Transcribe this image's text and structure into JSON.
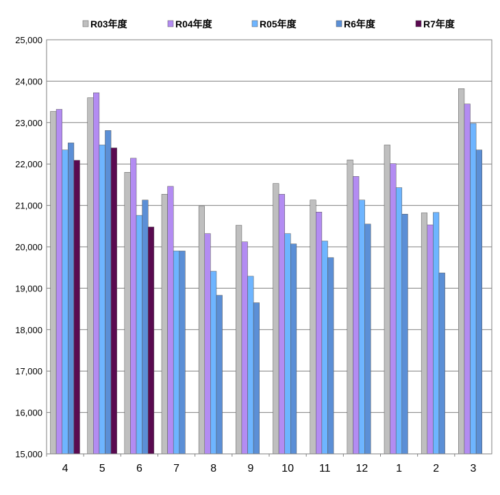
{
  "chart_data": {
    "type": "bar",
    "categories": [
      "4",
      "5",
      "6",
      "7",
      "8",
      "9",
      "10",
      "11",
      "12",
      "1",
      "2",
      "3"
    ],
    "series": [
      {
        "name": "R03年度",
        "color": "#bfbfbf",
        "values": [
          23270,
          23600,
          21800,
          21270,
          20980,
          20520,
          21530,
          21130,
          22100,
          22460,
          20820,
          23820
        ]
      },
      {
        "name": "R04年度",
        "color": "#b38cf2",
        "values": [
          23320,
          23720,
          22140,
          21460,
          20320,
          20120,
          21270,
          20840,
          21700,
          22010,
          20530,
          23450
        ]
      },
      {
        "name": "R05年度",
        "color": "#6eb5ff",
        "values": [
          22340,
          22460,
          20760,
          19900,
          19410,
          19290,
          20320,
          20140,
          21130,
          21430,
          20830,
          22980
        ]
      },
      {
        "name": "R6年度",
        "color": "#5b8fd6",
        "values": [
          22510,
          22810,
          21130,
          19900,
          18830,
          18650,
          20070,
          19740,
          20550,
          20790,
          19370,
          22340
        ]
      },
      {
        "name": "R7年度",
        "color": "#5a0a50",
        "values": [
          22090,
          22390,
          20480,
          null,
          null,
          null,
          null,
          null,
          null,
          null,
          null,
          null
        ]
      }
    ],
    "ylim": [
      15000,
      25000
    ],
    "ytick_labels": [
      "15,000",
      "16,000",
      "17,000",
      "18,000",
      "19,000",
      "20,000",
      "21,000",
      "22,000",
      "23,000",
      "24,000",
      "25,000"
    ],
    "grid": true,
    "legend_position": "top"
  }
}
